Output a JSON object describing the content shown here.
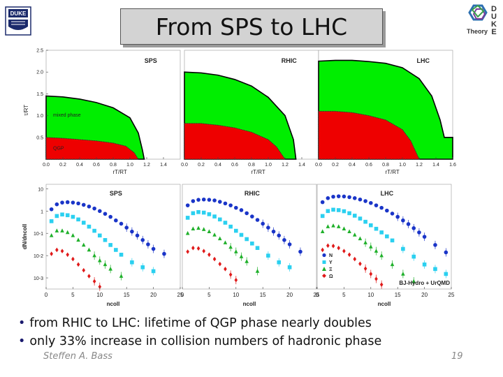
{
  "slide": {
    "title": "From SPS to LHC",
    "bullets": [
      "from RHIC to LHC: lifetime of QGP phase nearly doubles",
      "only 33% increase in collision numbers of hadronic phase"
    ],
    "author": "Steffen A. Bass",
    "page_number": "19",
    "logo_left_text": "DUKE",
    "logo_right_letters": [
      "D",
      "U",
      "K",
      "E"
    ],
    "logo_right_caption": "Theory"
  },
  "chart_data": [
    {
      "type": "area",
      "panel": "SPS",
      "title": "SPS",
      "xlabel": "rT/RT",
      "ylabel": "τ/RT",
      "xlim": [
        0,
        1.6
      ],
      "ylim": [
        0,
        2.5
      ],
      "x_ticks": [
        "0.0",
        "0.2",
        "0.4",
        "0.6",
        "0.8",
        "1.0",
        "1.2",
        "1.4"
      ],
      "y_ticks": [
        "0.5",
        "1.0",
        "1.5",
        "2.0",
        "2.5"
      ],
      "annotations": [
        "mixed phase",
        "QGP"
      ],
      "series": [
        {
          "name": "mixed phase",
          "color": "#00ee00",
          "x": [
            0,
            0.2,
            0.4,
            0.6,
            0.8,
            1.0,
            1.1,
            1.15,
            1.17
          ],
          "y": [
            1.45,
            1.43,
            1.38,
            1.3,
            1.18,
            0.95,
            0.6,
            0.2,
            0
          ]
        },
        {
          "name": "QGP",
          "color": "#ee0000",
          "x": [
            0,
            0.2,
            0.4,
            0.6,
            0.8,
            0.95,
            1.05,
            1.1
          ],
          "y": [
            0.5,
            0.48,
            0.45,
            0.42,
            0.37,
            0.3,
            0.15,
            0
          ]
        }
      ]
    },
    {
      "type": "area",
      "panel": "RHIC",
      "title": "RHIC",
      "xlabel": "rT/RT",
      "xlim": [
        0,
        1.6
      ],
      "ylim": [
        0,
        2.5
      ],
      "x_ticks": [
        "0.0",
        "0.2",
        "0.4",
        "0.6",
        "0.8",
        "1.0",
        "1.2",
        "1.4"
      ],
      "series": [
        {
          "name": "mixed phase",
          "color": "#00ee00",
          "x": [
            0,
            0.2,
            0.4,
            0.6,
            0.8,
            1.0,
            1.2,
            1.3,
            1.33
          ],
          "y": [
            2.0,
            1.98,
            1.93,
            1.83,
            1.68,
            1.42,
            1.0,
            0.45,
            0
          ]
        },
        {
          "name": "QGP",
          "color": "#ee0000",
          "x": [
            0,
            0.2,
            0.4,
            0.6,
            0.8,
            1.0,
            1.1,
            1.2
          ],
          "y": [
            0.82,
            0.82,
            0.78,
            0.72,
            0.62,
            0.45,
            0.28,
            0
          ]
        }
      ]
    },
    {
      "type": "area",
      "panel": "LHC",
      "title": "LHC",
      "xlabel": "rT/RT",
      "xlim": [
        0,
        1.6
      ],
      "ylim": [
        0,
        2.5
      ],
      "x_ticks": [
        "0.0",
        "0.2",
        "0.4",
        "0.6",
        "0.8",
        "1.0",
        "1.2",
        "1.4",
        "1.6"
      ],
      "series": [
        {
          "name": "mixed phase",
          "color": "#00ee00",
          "x": [
            0,
            0.2,
            0.4,
            0.6,
            0.8,
            1.0,
            1.2,
            1.35,
            1.45,
            1.5
          ],
          "y": [
            2.25,
            2.27,
            2.27,
            2.24,
            2.2,
            2.1,
            1.85,
            1.45,
            0.9,
            0.5
          ]
        },
        {
          "name": "QGP",
          "color": "#ee0000",
          "x": [
            0,
            0.2,
            0.4,
            0.6,
            0.8,
            1.0,
            1.1,
            1.2
          ],
          "y": [
            1.1,
            1.1,
            1.07,
            1.0,
            0.9,
            0.68,
            0.42,
            0
          ]
        }
      ]
    },
    {
      "type": "scatter",
      "panel": "SPS",
      "title": "SPS",
      "xlabel": "ncoll",
      "ylabel": "dN/dncoll",
      "xlim": [
        0,
        25
      ],
      "ylim_log10": [
        -3.5,
        1.2
      ],
      "x_ticks": [
        "0",
        "5",
        "10",
        "15",
        "20",
        "25"
      ],
      "y_ticks": [
        "10",
        "1",
        "10-1",
        "10-2",
        "10-3"
      ],
      "series": [
        {
          "name": "N",
          "color": "#1a35c8",
          "x": [
            1,
            2,
            3,
            4,
            5,
            6,
            7,
            8,
            9,
            10,
            11,
            12,
            13,
            14,
            15,
            16,
            17,
            18,
            19,
            20,
            22
          ],
          "y": [
            1.2,
            2.0,
            2.4,
            2.5,
            2.4,
            2.2,
            1.9,
            1.6,
            1.3,
            1.0,
            0.75,
            0.55,
            0.38,
            0.27,
            0.18,
            0.12,
            0.08,
            0.05,
            0.032,
            0.02,
            0.012
          ]
        },
        {
          "name": "Y",
          "color": "#2bd0f0",
          "x": [
            1,
            2,
            3,
            4,
            5,
            6,
            7,
            8,
            9,
            10,
            11,
            12,
            13,
            14,
            16,
            18,
            20
          ],
          "y": [
            0.35,
            0.6,
            0.7,
            0.65,
            0.55,
            0.42,
            0.3,
            0.2,
            0.13,
            0.08,
            0.05,
            0.03,
            0.018,
            0.011,
            0.005,
            0.003,
            0.002
          ]
        },
        {
          "name": "Ξ",
          "color": "#1fb02a",
          "x": [
            1,
            2,
            3,
            4,
            5,
            6,
            7,
            8,
            9,
            10,
            11,
            12,
            14
          ],
          "y": [
            0.08,
            0.13,
            0.13,
            0.11,
            0.08,
            0.05,
            0.03,
            0.018,
            0.01,
            0.006,
            0.004,
            0.0025,
            0.0012
          ]
        },
        {
          "name": "Ω",
          "color": "#e01a1a",
          "x": [
            1,
            2,
            3,
            4,
            5,
            6,
            7,
            8,
            9,
            10
          ],
          "y": [
            0.012,
            0.018,
            0.016,
            0.011,
            0.007,
            0.004,
            0.0022,
            0.0012,
            0.0007,
            0.0004
          ]
        }
      ]
    },
    {
      "type": "scatter",
      "panel": "RHIC",
      "title": "RHIC",
      "xlabel": "ncoll",
      "xlim": [
        0,
        25
      ],
      "x_ticks": [
        "0",
        "5",
        "10",
        "15",
        "20",
        "25"
      ],
      "series": [
        {
          "name": "N",
          "color": "#1a35c8",
          "x": [
            1,
            2,
            3,
            4,
            5,
            6,
            7,
            8,
            9,
            10,
            11,
            12,
            13,
            14,
            15,
            16,
            17,
            18,
            19,
            20,
            22
          ],
          "y": [
            1.8,
            2.8,
            3.2,
            3.3,
            3.2,
            3.0,
            2.6,
            2.2,
            1.8,
            1.4,
            1.1,
            0.8,
            0.57,
            0.4,
            0.27,
            0.18,
            0.12,
            0.08,
            0.05,
            0.032,
            0.015
          ]
        },
        {
          "name": "Y",
          "color": "#2bd0f0",
          "x": [
            1,
            2,
            3,
            4,
            5,
            6,
            7,
            8,
            9,
            10,
            11,
            12,
            13,
            14,
            16,
            18,
            20
          ],
          "y": [
            0.5,
            0.8,
            0.9,
            0.85,
            0.72,
            0.57,
            0.42,
            0.3,
            0.2,
            0.13,
            0.085,
            0.055,
            0.035,
            0.022,
            0.01,
            0.005,
            0.003
          ]
        },
        {
          "name": "Ξ",
          "color": "#1fb02a",
          "x": [
            1,
            2,
            3,
            4,
            5,
            6,
            7,
            8,
            9,
            10,
            11,
            12,
            14
          ],
          "y": [
            0.1,
            0.16,
            0.17,
            0.15,
            0.12,
            0.085,
            0.058,
            0.038,
            0.024,
            0.015,
            0.009,
            0.0055,
            0.002
          ]
        },
        {
          "name": "Ω",
          "color": "#e01a1a",
          "x": [
            1,
            2,
            3,
            4,
            5,
            6,
            7,
            8,
            9,
            10
          ],
          "y": [
            0.015,
            0.022,
            0.021,
            0.016,
            0.011,
            0.007,
            0.0042,
            0.0025,
            0.0014,
            0.0008
          ]
        }
      ]
    },
    {
      "type": "scatter",
      "panel": "LHC",
      "title": "LHC",
      "xlabel": "ncoll",
      "xlim": [
        0,
        25
      ],
      "x_ticks": [
        "0",
        "5",
        "10",
        "15",
        "20",
        "25"
      ],
      "legend": [
        "N",
        "Y",
        "Ξ",
        "Ω"
      ],
      "annotation": "BJ-Hydro + UrQMD",
      "series": [
        {
          "name": "N",
          "color": "#1a35c8",
          "x": [
            1,
            2,
            3,
            4,
            5,
            6,
            7,
            8,
            9,
            10,
            11,
            12,
            13,
            14,
            15,
            16,
            17,
            18,
            19,
            20,
            22,
            24
          ],
          "y": [
            2.5,
            3.8,
            4.4,
            4.6,
            4.5,
            4.2,
            3.8,
            3.3,
            2.8,
            2.3,
            1.8,
            1.4,
            1.05,
            0.77,
            0.55,
            0.38,
            0.26,
            0.17,
            0.11,
            0.07,
            0.03,
            0.014
          ]
        },
        {
          "name": "Y",
          "color": "#2bd0f0",
          "x": [
            1,
            2,
            3,
            4,
            5,
            6,
            7,
            8,
            9,
            10,
            11,
            12,
            13,
            14,
            16,
            18,
            20,
            22,
            24
          ],
          "y": [
            0.6,
            1.0,
            1.15,
            1.1,
            0.98,
            0.8,
            0.62,
            0.46,
            0.33,
            0.23,
            0.16,
            0.11,
            0.073,
            0.048,
            0.02,
            0.009,
            0.004,
            0.0025,
            0.0015
          ]
        },
        {
          "name": "Ξ",
          "color": "#1fb02a",
          "x": [
            1,
            2,
            3,
            4,
            5,
            6,
            7,
            8,
            9,
            10,
            11,
            12,
            14,
            16,
            18
          ],
          "y": [
            0.12,
            0.2,
            0.22,
            0.2,
            0.16,
            0.12,
            0.085,
            0.058,
            0.038,
            0.025,
            0.016,
            0.01,
            0.004,
            0.0015,
            0.0007
          ]
        },
        {
          "name": "Ω",
          "color": "#e01a1a",
          "x": [
            1,
            2,
            3,
            4,
            5,
            6,
            7,
            8,
            9,
            10,
            11,
            12
          ],
          "y": [
            0.018,
            0.028,
            0.027,
            0.022,
            0.016,
            0.011,
            0.007,
            0.0043,
            0.0026,
            0.0015,
            0.0009,
            0.0005
          ]
        }
      ]
    }
  ]
}
